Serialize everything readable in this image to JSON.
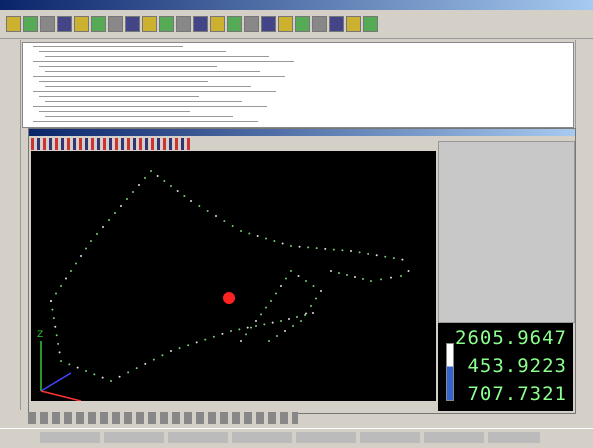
{
  "dro": {
    "readouts": [
      "2605.9647",
      "453.9223",
      "707.7321"
    ]
  },
  "viewport": {
    "axis_label": "Z"
  }
}
